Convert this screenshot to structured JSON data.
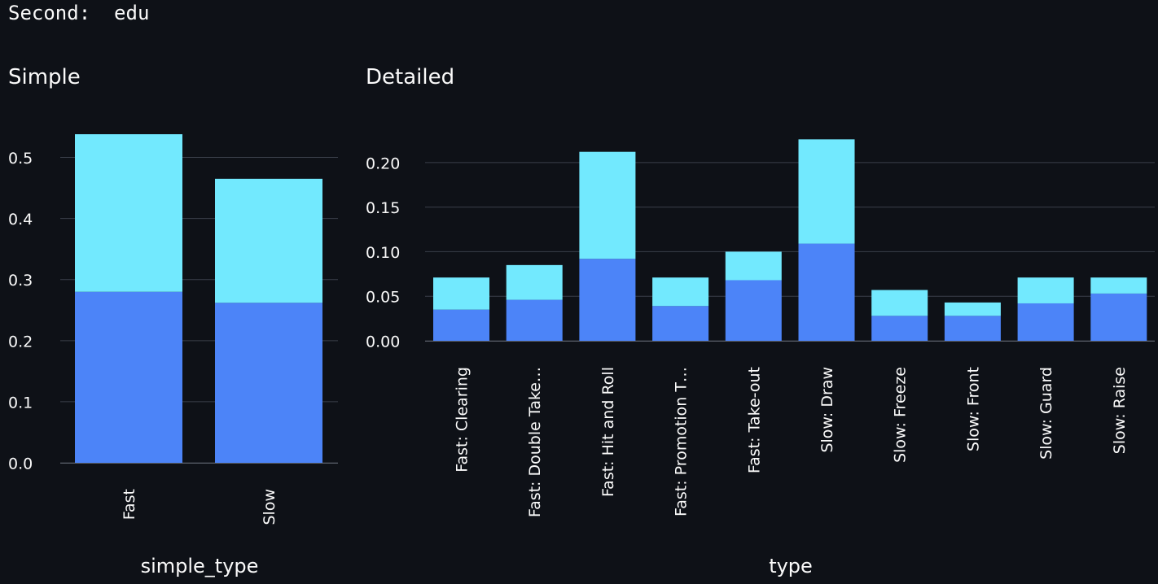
{
  "header": {
    "text": "Second:  edu"
  },
  "charts": {
    "simple": {
      "title": "Simple"
    },
    "detailed": {
      "title": "Detailed"
    }
  },
  "colors": {
    "background": "#0e1117",
    "lower": "#4c84f8",
    "upper": "#72e9fe",
    "grid": "#3a3f4a",
    "text": "#fafafa"
  },
  "chart_data": [
    {
      "type": "bar",
      "stacked": true,
      "title": "Simple",
      "xlabel": "simple_type",
      "ylabel": "",
      "categories": [
        "Fast",
        "Slow"
      ],
      "series": [
        {
          "color": "#4c84f8",
          "values": [
            0.28,
            0.262
          ]
        },
        {
          "color": "#72e9fe",
          "values": [
            0.258,
            0.203
          ]
        }
      ],
      "ylim": [
        0,
        0.55
      ],
      "yticks": [
        0.0,
        0.1,
        0.2,
        0.3,
        0.4,
        0.5
      ],
      "ytick_labels": [
        "0.0",
        "0.1",
        "0.2",
        "0.3",
        "0.4",
        "0.5"
      ],
      "grid": true
    },
    {
      "type": "bar",
      "stacked": true,
      "title": "Detailed",
      "xlabel": "type",
      "ylabel": "",
      "categories": [
        "Fast: Clearing",
        "Fast: Double Take…",
        "Fast: Hit and Roll",
        "Fast: Promotion T…",
        "Fast: Take-out",
        "Slow: Draw",
        "Slow: Freeze",
        "Slow: Front",
        "Slow: Guard",
        "Slow: Raise"
      ],
      "series": [
        {
          "color": "#4c84f8",
          "values": [
            0.035,
            0.046,
            0.092,
            0.039,
            0.068,
            0.109,
            0.028,
            0.028,
            0.042,
            0.053
          ]
        },
        {
          "color": "#72e9fe",
          "values": [
            0.036,
            0.039,
            0.12,
            0.032,
            0.032,
            0.117,
            0.029,
            0.015,
            0.029,
            0.018
          ]
        }
      ],
      "ylim": [
        0,
        0.24
      ],
      "yticks": [
        0.0,
        0.05,
        0.1,
        0.15,
        0.2
      ],
      "ytick_labels": [
        "0.00",
        "0.05",
        "0.10",
        "0.15",
        "0.20"
      ],
      "grid": true
    }
  ]
}
